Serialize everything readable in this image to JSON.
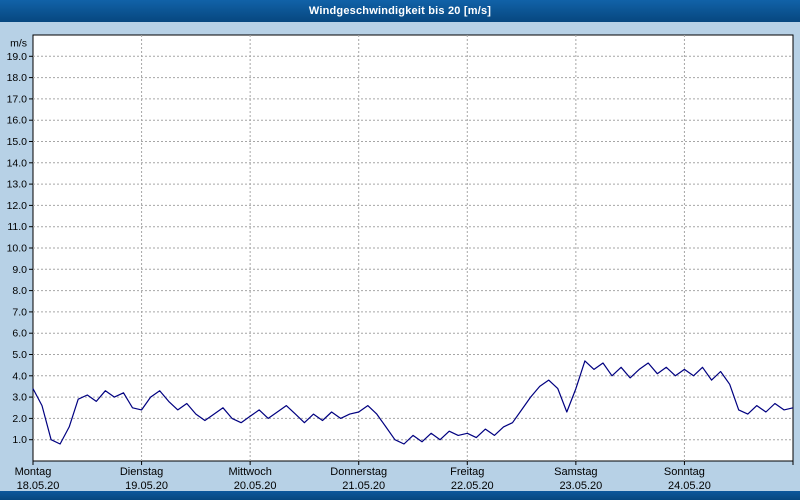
{
  "window": {
    "title": "Windgeschwindigkeit bis 20 [m/s]"
  },
  "colors": {
    "titlebar": "#0b5191",
    "background": "#b7d1e6",
    "plot_bg": "#ffffff",
    "plot_border": "#000000",
    "grid": "#a6a6a6",
    "line": "#000080",
    "axis_text": "#000000"
  },
  "chart_data": {
    "type": "line",
    "title": "Windgeschwindigkeit bis 20 [m/s]",
    "ylabel": "m/s",
    "ylim": [
      0,
      20
    ],
    "ytick_interval": 1.0,
    "ytick_labels": [
      "1.0",
      "2.0",
      "3.0",
      "4.0",
      "5.0",
      "6.0",
      "7.0",
      "8.0",
      "9.0",
      "10.0",
      "11.0",
      "12.0",
      "13.0",
      "14.0",
      "15.0",
      "16.0",
      "17.0",
      "18.0",
      "19.0"
    ],
    "grid": "dashed",
    "legend": "none",
    "line_color": "#000080",
    "x_categories": [
      {
        "day": "Montag",
        "date": "18.05.20"
      },
      {
        "day": "Dienstag",
        "date": "19.05.20"
      },
      {
        "day": "Mittwoch",
        "date": "20.05.20"
      },
      {
        "day": "Donnerstag",
        "date": "21.05.20"
      },
      {
        "day": "Freitag",
        "date": "22.05.20"
      },
      {
        "day": "Samstag",
        "date": "23.05.20"
      },
      {
        "day": "Sonntag",
        "date": "24.05.20"
      }
    ],
    "samples_per_day": 12,
    "sample_interval_hours": 2,
    "unit": "m/s",
    "values": [
      3.4,
      2.6,
      1.0,
      0.8,
      1.6,
      2.9,
      3.1,
      2.8,
      3.3,
      3.0,
      3.2,
      2.5,
      2.4,
      3.0,
      3.3,
      2.8,
      2.4,
      2.7,
      2.2,
      1.9,
      2.2,
      2.5,
      2.0,
      1.8,
      2.1,
      2.4,
      2.0,
      2.3,
      2.6,
      2.2,
      1.8,
      2.2,
      1.9,
      2.3,
      2.0,
      2.2,
      2.3,
      2.6,
      2.2,
      1.6,
      1.0,
      0.8,
      1.2,
      0.9,
      1.3,
      1.0,
      1.4,
      1.2,
      1.3,
      1.1,
      1.5,
      1.2,
      1.6,
      1.8,
      2.4,
      3.0,
      3.5,
      3.8,
      3.4,
      2.3,
      3.4,
      4.7,
      4.3,
      4.6,
      4.0,
      4.4,
      3.9,
      4.3,
      4.6,
      4.1,
      4.4,
      4.0,
      4.3,
      4.0,
      4.4,
      3.8,
      4.2,
      3.6,
      2.4,
      2.2,
      2.6,
      2.3,
      2.7,
      2.4,
      2.5
    ]
  }
}
